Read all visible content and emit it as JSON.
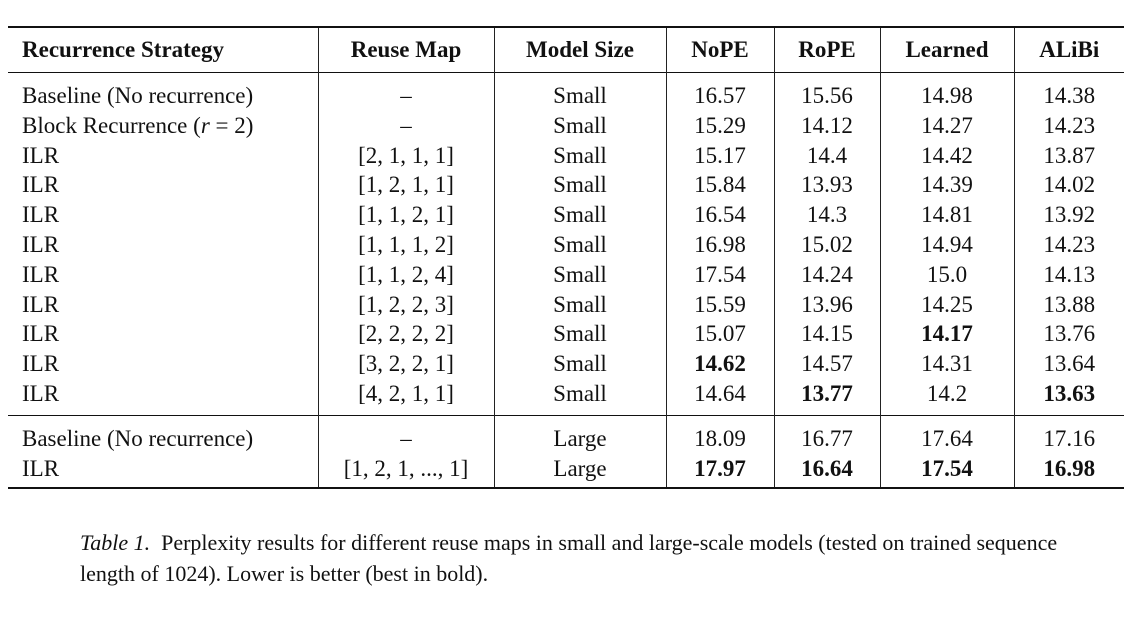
{
  "table": {
    "headers": [
      "Recurrence Strategy",
      "Reuse Map",
      "Model Size",
      "NoPE",
      "RoPE",
      "Learned",
      "ALiBi"
    ],
    "small_rows": [
      {
        "strategy": "Baseline (No recurrence)",
        "reuse": "–",
        "size": "Small",
        "nope": "16.57",
        "rope": "15.56",
        "learned": "14.98",
        "alibi": "14.38",
        "bold": []
      },
      {
        "strategy_prefix": "Block Recurrence (",
        "strategy_var": "r",
        "strategy_suffix": " = 2)",
        "reuse": "–",
        "size": "Small",
        "nope": "15.29",
        "rope": "14.12",
        "learned": "14.27",
        "alibi": "14.23",
        "bold": []
      },
      {
        "strategy": "ILR",
        "reuse": "[2, 1, 1, 1]",
        "size": "Small",
        "nope": "15.17",
        "rope": "14.4",
        "learned": "14.42",
        "alibi": "13.87",
        "bold": []
      },
      {
        "strategy": "ILR",
        "reuse": "[1, 2, 1, 1]",
        "size": "Small",
        "nope": "15.84",
        "rope": "13.93",
        "learned": "14.39",
        "alibi": "14.02",
        "bold": []
      },
      {
        "strategy": "ILR",
        "reuse": "[1, 1, 2, 1]",
        "size": "Small",
        "nope": "16.54",
        "rope": "14.3",
        "learned": "14.81",
        "alibi": "13.92",
        "bold": []
      },
      {
        "strategy": "ILR",
        "reuse": "[1, 1, 1, 2]",
        "size": "Small",
        "nope": "16.98",
        "rope": "15.02",
        "learned": "14.94",
        "alibi": "14.23",
        "bold": []
      },
      {
        "strategy": "ILR",
        "reuse": "[1, 1, 2, 4]",
        "size": "Small",
        "nope": "17.54",
        "rope": "14.24",
        "learned": "15.0",
        "alibi": "14.13",
        "bold": []
      },
      {
        "strategy": "ILR",
        "reuse": "[1, 2, 2, 3]",
        "size": "Small",
        "nope": "15.59",
        "rope": "13.96",
        "learned": "14.25",
        "alibi": "13.88",
        "bold": []
      },
      {
        "strategy": "ILR",
        "reuse": "[2, 2, 2, 2]",
        "size": "Small",
        "nope": "15.07",
        "rope": "14.15",
        "learned": "14.17",
        "alibi": "13.76",
        "bold": [
          "learned"
        ]
      },
      {
        "strategy": "ILR",
        "reuse": "[3, 2, 2, 1]",
        "size": "Small",
        "nope": "14.62",
        "rope": "14.57",
        "learned": "14.31",
        "alibi": "13.64",
        "bold": [
          "nope"
        ]
      },
      {
        "strategy": "ILR",
        "reuse": "[4, 2, 1, 1]",
        "size": "Small",
        "nope": "14.64",
        "rope": "13.77",
        "learned": "14.2",
        "alibi": "13.63",
        "bold": [
          "rope",
          "alibi"
        ]
      }
    ],
    "large_rows": [
      {
        "strategy": "Baseline (No recurrence)",
        "reuse": "–",
        "size": "Large",
        "nope": "18.09",
        "rope": "16.77",
        "learned": "17.64",
        "alibi": "17.16",
        "bold": []
      },
      {
        "strategy": "ILR",
        "reuse": "[1, 2, 1, ..., 1]",
        "size": "Large",
        "nope": "17.97",
        "rope": "16.64",
        "learned": "17.54",
        "alibi": "16.98",
        "bold": [
          "nope",
          "rope",
          "learned",
          "alibi"
        ]
      }
    ]
  },
  "caption": {
    "label": "Table 1.",
    "text": "Perplexity results for different reuse maps in small and large-scale models (tested on trained sequence length of 1024). Lower is better (best in bold)."
  }
}
